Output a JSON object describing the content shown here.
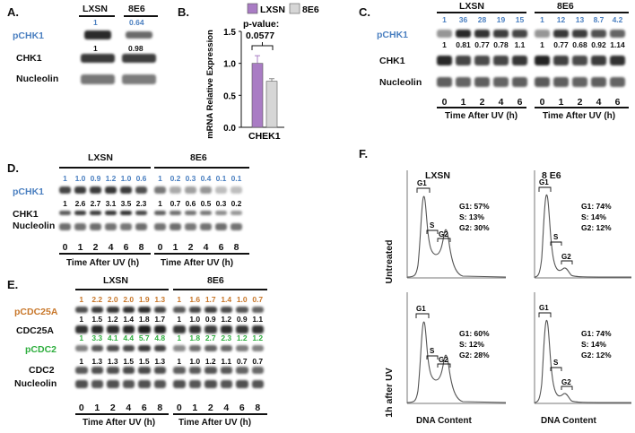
{
  "panelA": {
    "letter": "A.",
    "groups": [
      "LXSN",
      "8E6"
    ],
    "rows": [
      {
        "label": "pCHK1",
        "values": [
          "1",
          "0.64"
        ]
      },
      {
        "label": "CHK1",
        "values": [
          "1",
          "0.98"
        ]
      },
      {
        "label": "Nucleolin",
        "values": []
      }
    ]
  },
  "panelB": {
    "letter": "B.",
    "legend": [
      "LXSN",
      "8E6"
    ],
    "pvalue_label": "p-value:",
    "pvalue": "0.0577",
    "ylabel": "mRNA Relative Expression",
    "xlabel": "CHEK1",
    "legend_colors": {
      "LXSN": "#a97cc4",
      "8E6": "#d6d6d6"
    },
    "chart_data": {
      "type": "bar",
      "categories": [
        "CHEK1"
      ],
      "series": [
        {
          "name": "LXSN",
          "values": [
            1.0
          ],
          "error": [
            0.12
          ]
        },
        {
          "name": "8E6",
          "values": [
            0.72
          ],
          "error": [
            0.04
          ]
        }
      ],
      "ylim": [
        0,
        1.5
      ],
      "yticks": [
        "0.0",
        "0.5",
        "1.0",
        "1.5"
      ]
    }
  },
  "panelC": {
    "letter": "C.",
    "groups": [
      "LXSN",
      "8E6"
    ],
    "rows": [
      {
        "label": "pCHK1",
        "values": [
          "1",
          "36",
          "28",
          "19",
          "15",
          "1",
          "12",
          "13",
          "8.7",
          "4.2"
        ]
      },
      {
        "label": "CHK1",
        "values": [
          "1",
          "0.81",
          "0.77",
          "0.78",
          "1.1",
          "1",
          "0.77",
          "0.68",
          "0.92",
          "1.14"
        ]
      },
      {
        "label": "Nucleolin",
        "values": []
      }
    ],
    "times": [
      "0",
      "1",
      "2",
      "4",
      "6",
      "0",
      "1",
      "2",
      "4",
      "6"
    ],
    "xlabel": "Time After UV (h)"
  },
  "panelD": {
    "letter": "D.",
    "groups": [
      "LXSN",
      "8E6"
    ],
    "rows": [
      {
        "label": "pCHK1",
        "values": [
          "1",
          "1.0",
          "0.9",
          "1.2",
          "1.0",
          "0.6",
          "1",
          "0.2",
          "0.3",
          "0.4",
          "0.1",
          "0.1"
        ]
      },
      {
        "label": "CHK1",
        "values": [
          "1",
          "2.6",
          "2.7",
          "3.1",
          "3.5",
          "2.3",
          "1",
          "0.7",
          "0.6",
          "0.5",
          "0.3",
          "0.2"
        ]
      },
      {
        "label": "Nucleolin",
        "values": []
      }
    ],
    "times": [
      "0",
      "1",
      "2",
      "4",
      "6",
      "8",
      "0",
      "1",
      "2",
      "4",
      "6",
      "8"
    ],
    "xlabel": "Time After UV (h)"
  },
  "panelE": {
    "letter": "E.",
    "groups": [
      "LXSN",
      "8E6"
    ],
    "rows": [
      {
        "label": "pCDC25A",
        "values": [
          "1",
          "2.2",
          "2.0",
          "2.0",
          "1.9",
          "1.3",
          "1",
          "1.6",
          "1.7",
          "1.4",
          "1.0",
          "0.7"
        ]
      },
      {
        "label": "CDC25A",
        "values": [
          "1",
          "1.5",
          "1.2",
          "1.4",
          "1.8",
          "1.7",
          "1",
          "1.0",
          "0.9",
          "1.2",
          "0.9",
          "1.1"
        ]
      },
      {
        "label": "pCDC2",
        "values": [
          "1",
          "3.3",
          "4.1",
          "4.4",
          "5.7",
          "4.8",
          "1",
          "1.8",
          "2.7",
          "2.3",
          "1.2",
          "1.2"
        ]
      },
      {
        "label": "CDC2",
        "values": [
          "1",
          "1.3",
          "1.3",
          "1.5",
          "1.5",
          "1.3",
          "1",
          "1.0",
          "1.2",
          "1.1",
          "0.7",
          "0.7"
        ]
      },
      {
        "label": "Nucleolin",
        "values": []
      }
    ],
    "times": [
      "0",
      "1",
      "2",
      "4",
      "6",
      "8",
      "0",
      "1",
      "2",
      "4",
      "6",
      "8"
    ],
    "xlabel": "Time After UV (h)"
  },
  "panelF": {
    "letter": "F.",
    "columns": [
      "LXSN",
      "8 E6"
    ],
    "rowlabels": [
      "Untreated",
      "1h after UV"
    ],
    "xlabel": "DNA Content",
    "peaks": [
      "G1",
      "S",
      "G2"
    ],
    "plots": [
      {
        "stats": [
          "G1: 57%",
          "S: 13%",
          "G2: 30%"
        ]
      },
      {
        "stats": [
          "G1: 74%",
          "S: 14%",
          "G2: 12%"
        ]
      },
      {
        "stats": [
          "G1: 60%",
          "S: 12%",
          "G2: 28%"
        ]
      },
      {
        "stats": [
          "G1: 74%",
          "S: 14%",
          "G2: 12%"
        ]
      }
    ]
  }
}
